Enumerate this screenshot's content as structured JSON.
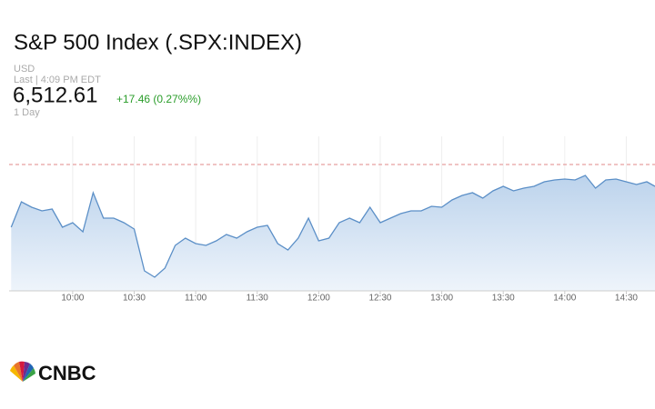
{
  "header": {
    "title": "S&P 500 Index (.SPX:INDEX)",
    "currency": "USD",
    "last": "Last | 4:09 PM EDT",
    "price": "6,512.61",
    "change": "+17.46 (0.27%%)",
    "period": "1 Day"
  },
  "chart_data": {
    "type": "line",
    "color": "#5b8fc7",
    "grid": true,
    "reference_line": 6514.5,
    "x": [
      570,
      575,
      580,
      585,
      590,
      595,
      600,
      605,
      610,
      615,
      620,
      625,
      630,
      635,
      640,
      645,
      650,
      655,
      660,
      665,
      670,
      675,
      680,
      685,
      690,
      695,
      700,
      705,
      710,
      715,
      720,
      725,
      730,
      735,
      740,
      745,
      750,
      755,
      760,
      765,
      770,
      775,
      780,
      785,
      790,
      795,
      800,
      805,
      810,
      815,
      820,
      825,
      830,
      835,
      840,
      845,
      850,
      855,
      860,
      865,
      870,
      875,
      880,
      884
    ],
    "values": [
      6480,
      6494,
      6491,
      6489,
      6490,
      6480,
      6482.5,
      6477.5,
      6499,
      6485,
      6485,
      6482.5,
      6479,
      6456,
      6452.5,
      6457.5,
      6470,
      6474,
      6471,
      6470,
      6472.5,
      6476,
      6474,
      6477.5,
      6480,
      6481,
      6471,
      6467.5,
      6474,
      6485,
      6472.5,
      6474,
      6482.5,
      6485,
      6482.5,
      6491,
      6482.5,
      6485,
      6487.5,
      6489,
      6489,
      6491.5,
      6491,
      6495,
      6497.5,
      6499,
      6496,
      6500,
      6502.5,
      6500,
      6501.5,
      6502.5,
      6505,
      6506,
      6506.5,
      6506,
      6508.5,
      6501.5,
      6506,
      6506.5,
      6505,
      6503.5,
      6505,
      6502.5
    ],
    "xlim": [
      569,
      884
    ],
    "ylim": [
      6445,
      6530
    ],
    "xticks": [
      {
        "value": 600,
        "label": "10:00"
      },
      {
        "value": 630,
        "label": "10:30"
      },
      {
        "value": 660,
        "label": "11:00"
      },
      {
        "value": 690,
        "label": "11:30"
      },
      {
        "value": 720,
        "label": "12:00"
      },
      {
        "value": 750,
        "label": "12:30"
      },
      {
        "value": 780,
        "label": "13:00"
      },
      {
        "value": 810,
        "label": "13:30"
      },
      {
        "value": 840,
        "label": "14:00"
      },
      {
        "value": 870,
        "label": "14:30"
      }
    ]
  },
  "logo": "CNBC"
}
